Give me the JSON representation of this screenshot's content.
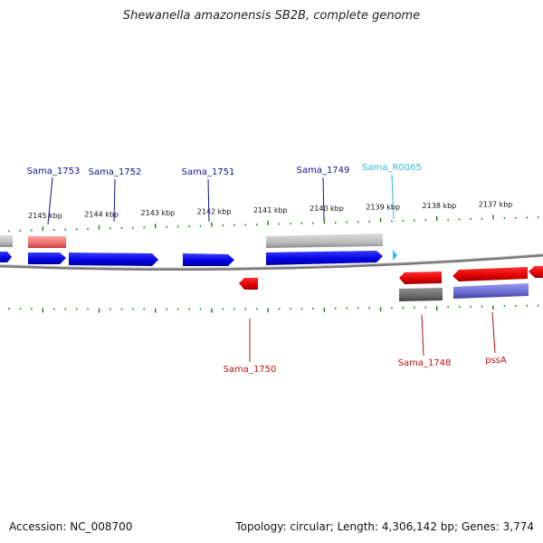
{
  "title": "Shewanella amazonensis SB2B, complete genome",
  "footer": {
    "accession": "Accession: NC_008700",
    "summary": "Topology: circular; Length: 4,306,142 bp; Genes: 3,774"
  },
  "colors": {
    "forward_cds": "#1010e0",
    "reverse_cds": "#e01010",
    "forward_rna": "#30c0e8",
    "gray_feature": "#c0c0c0",
    "dark_gray_feature": "#707070",
    "pink_feature": "#f08080",
    "purple_feature": "#7070d0",
    "tick": "#228822",
    "label_blue": "#101090",
    "label_cyan": "#30b8e0",
    "label_red": "#c01010",
    "backbone": "#808080"
  },
  "ticks": [
    {
      "label": "2145 kbp",
      "kbp": 2145
    },
    {
      "label": "2144 kbp",
      "kbp": 2144
    },
    {
      "label": "2143 kbp",
      "kbp": 2143
    },
    {
      "label": "2142 kbp",
      "kbp": 2142
    },
    {
      "label": "2141 kbp",
      "kbp": 2141
    },
    {
      "label": "2140 kbp",
      "kbp": 2140
    },
    {
      "label": "2139 kbp",
      "kbp": 2139
    },
    {
      "label": "2138 kbp",
      "kbp": 2138
    },
    {
      "label": "2137 kbp",
      "kbp": 2137
    }
  ],
  "genes_top": [
    {
      "name": "Sama_1753",
      "kind": "forward_cds"
    },
    {
      "name": "Sama_1752",
      "kind": "forward_cds"
    },
    {
      "name": "Sama_1751",
      "kind": "forward_cds"
    },
    {
      "name": "Sama_1749",
      "kind": "forward_cds"
    },
    {
      "name": "Sama_R0065",
      "kind": "forward_rna"
    }
  ],
  "genes_bottom": [
    {
      "name": "Sama_1750",
      "kind": "reverse_cds"
    },
    {
      "name": "Sama_1748",
      "kind": "reverse_cds"
    },
    {
      "name": "pssA",
      "kind": "reverse_cds"
    }
  ]
}
